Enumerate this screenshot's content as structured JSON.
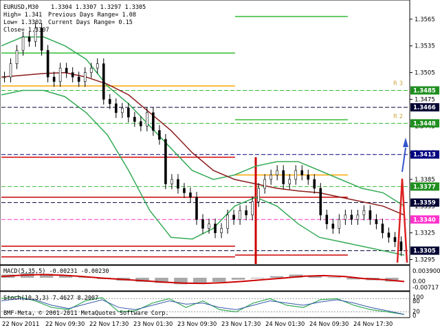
{
  "window": {
    "symbol_title": "EURUSD,M30",
    "ohlc_header": "1.3304 1.3307 1.3297 1.3305"
  },
  "info_lines": {
    "high": "High= 1.341",
    "low": "Low= 1.3302",
    "close": "Close= 1.3307",
    "prev_range": "Previous Days Range= 1.08",
    "curr_range": "Current Days Range= 0.15"
  },
  "price_axis": {
    "ticks": [
      "1.3565",
      "1.3535",
      "1.3505",
      "1.3475",
      "1.3445",
      "1.3415",
      "1.3385",
      "1.3355",
      "1.3325",
      "1.3295"
    ],
    "labels": [
      {
        "text": "1.3485",
        "bg": "#1f8f1f",
        "fg": "#fff"
      },
      {
        "text": "1.3466",
        "bg": "#000033",
        "fg": "#fff"
      },
      {
        "text": "1.3448",
        "bg": "#1f8f1f",
        "fg": "#fff"
      },
      {
        "text": "1.3413",
        "bg": "#000080",
        "fg": "#fff"
      },
      {
        "text": "1.3377",
        "bg": "#1f8f1f",
        "fg": "#fff"
      },
      {
        "text": "1.3359",
        "bg": "#000033",
        "fg": "#fff"
      },
      {
        "text": "1.3340",
        "bg": "#ff33cc",
        "fg": "#fff"
      },
      {
        "text": "1.3305",
        "bg": "#000033",
        "fg": "#fff"
      }
    ]
  },
  "pivot_labels": {
    "r3": "R 3",
    "r2": "R 2"
  },
  "macd": {
    "title": "MACD(5,35,5) -0.00231 -0.00230",
    "axis": [
      "0.003900",
      "0.00",
      "-0.00717"
    ]
  },
  "stoch": {
    "title": "Stoch(10,3,3) 7.4627 8.2007",
    "axis": [
      "100",
      "80",
      "20",
      "0"
    ]
  },
  "copyright": "BMF-Meta, © 2001-2011 MetaQuotes Software Corp.",
  "time_axis": [
    "22 Nov 2011",
    "22 Nov 09:30",
    "22 Nov 17:30",
    "23 Nov 01:30",
    "23 Nov 09:30",
    "23 Nov 17:30",
    "24 Nov 01:30",
    "24 Nov 09:30",
    "24 Nov 17:30"
  ],
  "colors": {
    "bollinger": "#33aa55",
    "ma": "#8b1a1a",
    "pivot_green": "#33bb33",
    "pivot_orange": "#ffa500",
    "pivot_red": "#cc0000",
    "macd_hist": "#aaaaaa",
    "macd_signal": "#cc0000",
    "stoch_main": "#33aa55",
    "stoch_signal": "#3355aa"
  },
  "chart_data": {
    "type": "line",
    "subtype": "candlestick",
    "title": "EURUSD,M30",
    "ylim": [
      1.329,
      1.3585
    ],
    "price_series": [
      1.35,
      1.3515,
      1.353,
      1.3545,
      1.354,
      1.3555,
      1.353,
      1.35,
      1.3495,
      1.351,
      1.3505,
      1.35,
      1.3495,
      1.3505,
      1.351,
      1.3515,
      1.3475,
      1.347,
      1.346,
      1.3465,
      1.3455,
      1.345,
      1.3445,
      1.346,
      1.344,
      1.343,
      1.338,
      1.3385,
      1.3375,
      1.337,
      1.3365,
      1.334,
      1.333,
      1.3335,
      1.3325,
      1.333,
      1.3345,
      1.334,
      1.335,
      1.3345,
      1.336,
      1.3375,
      1.3385,
      1.339,
      1.3395,
      1.338,
      1.3385,
      1.3395,
      1.339,
      1.3385,
      1.3375,
      1.3345,
      1.3335,
      1.333,
      1.334,
      1.3345,
      1.334,
      1.3345,
      1.335,
      1.334,
      1.3335,
      1.3325,
      1.332,
      1.3315,
      1.3305
    ],
    "moving_average": [
      1.35,
      1.3502,
      1.3504,
      1.3505,
      1.35,
      1.3492,
      1.348,
      1.346,
      1.344,
      1.3415,
      1.3395,
      1.3385,
      1.338,
      1.3375,
      1.3372,
      1.337,
      1.3365,
      1.336,
      1.3355,
      1.3345
    ],
    "bollinger_upper": [
      1.3535,
      1.3545,
      1.3545,
      1.3535,
      1.352,
      1.349,
      1.347,
      1.3445,
      1.342,
      1.3395,
      1.3385,
      1.339,
      1.34,
      1.3405,
      1.3405,
      1.3395,
      1.3385,
      1.3375,
      1.337,
      1.3355
    ],
    "bollinger_lower": [
      1.348,
      1.3485,
      1.3485,
      1.3478,
      1.346,
      1.3435,
      1.3395,
      1.335,
      1.332,
      1.3318,
      1.333,
      1.3355,
      1.3365,
      1.3355,
      1.3335,
      1.332,
      1.3315,
      1.331,
      1.3305,
      1.33
    ],
    "pivots": [
      {
        "level": 1.3568,
        "x_from": 0.58,
        "x_to": 0.86
      },
      {
        "level": 1.3527,
        "x_from": 0.0,
        "x_to": 0.58
      },
      {
        "level": 1.349,
        "x_from": 0.0,
        "x_to": 0.58
      },
      {
        "level": 1.3452,
        "x_from": 0.58,
        "x_to": 0.86
      },
      {
        "level": 1.339,
        "x_from": 0.58,
        "x_to": 0.86
      },
      {
        "level": 1.341,
        "x_from": 0.0,
        "x_to": 0.58
      },
      {
        "level": 1.3365,
        "x_from": 0.0,
        "x_to": 0.86
      },
      {
        "level": 1.331,
        "x_from": 0.0,
        "x_to": 0.58
      },
      {
        "level": 1.3298,
        "x_from": 0.0,
        "x_to": 0.58
      },
      {
        "level": 1.33,
        "x_from": 0.58,
        "x_to": 0.86
      }
    ],
    "horizontal_lines": [
      1.3485,
      1.3466,
      1.3448,
      1.3413,
      1.3377,
      1.3359,
      1.334,
      1.3305
    ],
    "macd_hist": [
      0.0012,
      0.0018,
      0.0015,
      0.0008,
      0.0002,
      -0.0008,
      -0.0018,
      -0.0025,
      -0.0032,
      -0.004,
      -0.0035,
      -0.0025,
      -0.0012,
      -0.0002,
      0.0006,
      0.0012,
      0.0008,
      0.0002,
      -0.001,
      -0.0015,
      -0.0023
    ],
    "macd_signal": [
      0.0005,
      0.001,
      0.0012,
      0.001,
      0.0005,
      -0.0002,
      -0.001,
      -0.0018,
      -0.0026,
      -0.0033,
      -0.0035,
      -0.003,
      -0.0022,
      -0.0012,
      -0.0002,
      0.0006,
      0.0008,
      0.0005,
      -0.0005,
      -0.0012,
      -0.0023
    ],
    "stoch_main": [
      80,
      90,
      70,
      40,
      30,
      70,
      85,
      20,
      25,
      60,
      80,
      40,
      70,
      30,
      20,
      60,
      80,
      50,
      40,
      75,
      80,
      50,
      30,
      20,
      8
    ],
    "stoch_signal": [
      70,
      80,
      75,
      50,
      35,
      55,
      75,
      40,
      30,
      50,
      70,
      55,
      60,
      40,
      30,
      50,
      70,
      60,
      50,
      65,
      75,
      60,
      40,
      25,
      8
    ]
  }
}
